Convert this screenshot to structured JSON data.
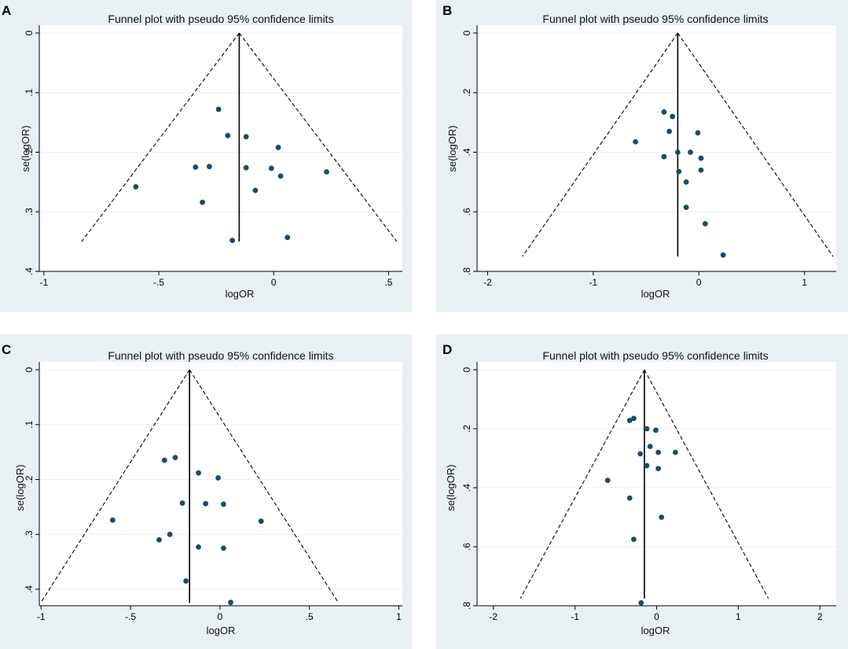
{
  "figure": {
    "colors": {
      "panel_bg": "#e9f0f4",
      "plot_bg": "#ffffff",
      "point": "#1c4a6c"
    }
  },
  "chart_data": [
    {
      "panel": "A",
      "type": "scatter",
      "title": "Funnel plot with pseudo 95% confidence limits",
      "xlabel": "logOR",
      "ylabel": "se(logOR)",
      "xlim": [
        -1.02,
        0.56
      ],
      "ylim": [
        0,
        0.4
      ],
      "y_inverted": true,
      "xticks": [
        -1,
        -0.5,
        0,
        0.5
      ],
      "xtick_labels": [
        "-1",
        "-.5",
        "0",
        ".5"
      ],
      "yticks": [
        0,
        0.1,
        0.2,
        0.3,
        0.4
      ],
      "ytick_labels": [
        "0",
        ".1",
        ".2",
        ".3",
        ".4"
      ],
      "pooled_logOR": -0.15,
      "funnel_se_max": 0.35,
      "points": [
        {
          "x": -0.6,
          "y": 0.258
        },
        {
          "x": -0.34,
          "y": 0.225
        },
        {
          "x": -0.31,
          "y": 0.284
        },
        {
          "x": -0.28,
          "y": 0.224
        },
        {
          "x": -0.24,
          "y": 0.128
        },
        {
          "x": -0.2,
          "y": 0.172
        },
        {
          "x": -0.18,
          "y": 0.348
        },
        {
          "x": -0.12,
          "y": 0.174
        },
        {
          "x": -0.12,
          "y": 0.226
        },
        {
          "x": -0.08,
          "y": 0.264
        },
        {
          "x": -0.01,
          "y": 0.227
        },
        {
          "x": 0.02,
          "y": 0.192
        },
        {
          "x": 0.03,
          "y": 0.24
        },
        {
          "x": 0.06,
          "y": 0.343
        },
        {
          "x": 0.23,
          "y": 0.233
        }
      ]
    },
    {
      "panel": "B",
      "type": "scatter",
      "title": "Funnel plot with pseudo 95% confidence limits",
      "xlabel": "logOR",
      "ylabel": "se(logOR)",
      "xlim": [
        -2.1,
        1.3
      ],
      "ylim": [
        0,
        0.8
      ],
      "y_inverted": true,
      "xticks": [
        -2,
        -1,
        0,
        1
      ],
      "xtick_labels": [
        "-2",
        "-1",
        "0",
        "1"
      ],
      "yticks": [
        0,
        0.2,
        0.4,
        0.6,
        0.8
      ],
      "ytick_labels": [
        "0",
        ".2",
        ".4",
        ".6",
        ".8"
      ],
      "pooled_logOR": -0.2,
      "funnel_se_max": 0.75,
      "points": [
        {
          "x": -0.6,
          "y": 0.365
        },
        {
          "x": -0.33,
          "y": 0.265
        },
        {
          "x": -0.33,
          "y": 0.415
        },
        {
          "x": -0.28,
          "y": 0.33
        },
        {
          "x": -0.25,
          "y": 0.28
        },
        {
          "x": -0.2,
          "y": 0.4
        },
        {
          "x": -0.19,
          "y": 0.465
        },
        {
          "x": -0.12,
          "y": 0.5
        },
        {
          "x": -0.12,
          "y": 0.585
        },
        {
          "x": -0.08,
          "y": 0.4
        },
        {
          "x": -0.01,
          "y": 0.335
        },
        {
          "x": 0.02,
          "y": 0.42
        },
        {
          "x": 0.02,
          "y": 0.46
        },
        {
          "x": 0.06,
          "y": 0.64
        },
        {
          "x": 0.23,
          "y": 0.745
        }
      ]
    },
    {
      "panel": "C",
      "type": "scatter",
      "title": "Funnel plot with pseudo 95% confidence limits",
      "xlabel": "logOR",
      "ylabel": "se(logOR)",
      "xlim": [
        -1.01,
        1.02
      ],
      "ylim": [
        0,
        0.43
      ],
      "y_inverted": true,
      "xticks": [
        -1,
        -0.5,
        0,
        0.5,
        1
      ],
      "xtick_labels": [
        "-1",
        "-.5",
        "0",
        ".5",
        "1"
      ],
      "yticks": [
        0,
        0.1,
        0.2,
        0.3,
        0.4
      ],
      "ytick_labels": [
        "0",
        ".1",
        ".2",
        ".3",
        ".4"
      ],
      "pooled_logOR": -0.17,
      "funnel_se_max": 0.425,
      "points": [
        {
          "x": -0.6,
          "y": 0.274
        },
        {
          "x": -0.34,
          "y": 0.31
        },
        {
          "x": -0.31,
          "y": 0.165
        },
        {
          "x": -0.28,
          "y": 0.3
        },
        {
          "x": -0.25,
          "y": 0.16
        },
        {
          "x": -0.21,
          "y": 0.243
        },
        {
          "x": -0.19,
          "y": 0.385
        },
        {
          "x": -0.12,
          "y": 0.188
        },
        {
          "x": -0.12,
          "y": 0.323
        },
        {
          "x": -0.08,
          "y": 0.244
        },
        {
          "x": -0.01,
          "y": 0.197
        },
        {
          "x": 0.02,
          "y": 0.245
        },
        {
          "x": 0.02,
          "y": 0.325
        },
        {
          "x": 0.06,
          "y": 0.424
        },
        {
          "x": 0.23,
          "y": 0.276
        }
      ]
    },
    {
      "panel": "D",
      "type": "scatter",
      "title": "Funnel plot with pseudo 95% confidence limits",
      "xlabel": "logOR",
      "ylabel": "se(logOR)",
      "xlim": [
        -2.2,
        2.2
      ],
      "ylim": [
        0,
        0.8
      ],
      "y_inverted": true,
      "xticks": [
        -2,
        -1,
        0,
        1,
        2
      ],
      "xtick_labels": [
        "-2",
        "-1",
        "0",
        "1",
        "2"
      ],
      "yticks": [
        0,
        0.2,
        0.4,
        0.6,
        0.8
      ],
      "ytick_labels": [
        "0",
        ".2",
        ".4",
        ".6",
        ".8"
      ],
      "pooled_logOR": -0.15,
      "funnel_se_max": 0.775,
      "points": [
        {
          "x": -0.6,
          "y": 0.375
        },
        {
          "x": -0.33,
          "y": 0.172
        },
        {
          "x": -0.33,
          "y": 0.435
        },
        {
          "x": -0.28,
          "y": 0.165
        },
        {
          "x": -0.28,
          "y": 0.575
        },
        {
          "x": -0.2,
          "y": 0.285
        },
        {
          "x": -0.19,
          "y": 0.79
        },
        {
          "x": -0.12,
          "y": 0.2
        },
        {
          "x": -0.12,
          "y": 0.325
        },
        {
          "x": -0.08,
          "y": 0.26
        },
        {
          "x": -0.01,
          "y": 0.205
        },
        {
          "x": 0.02,
          "y": 0.28
        },
        {
          "x": 0.02,
          "y": 0.335
        },
        {
          "x": 0.06,
          "y": 0.5
        },
        {
          "x": 0.23,
          "y": 0.28
        }
      ]
    }
  ]
}
